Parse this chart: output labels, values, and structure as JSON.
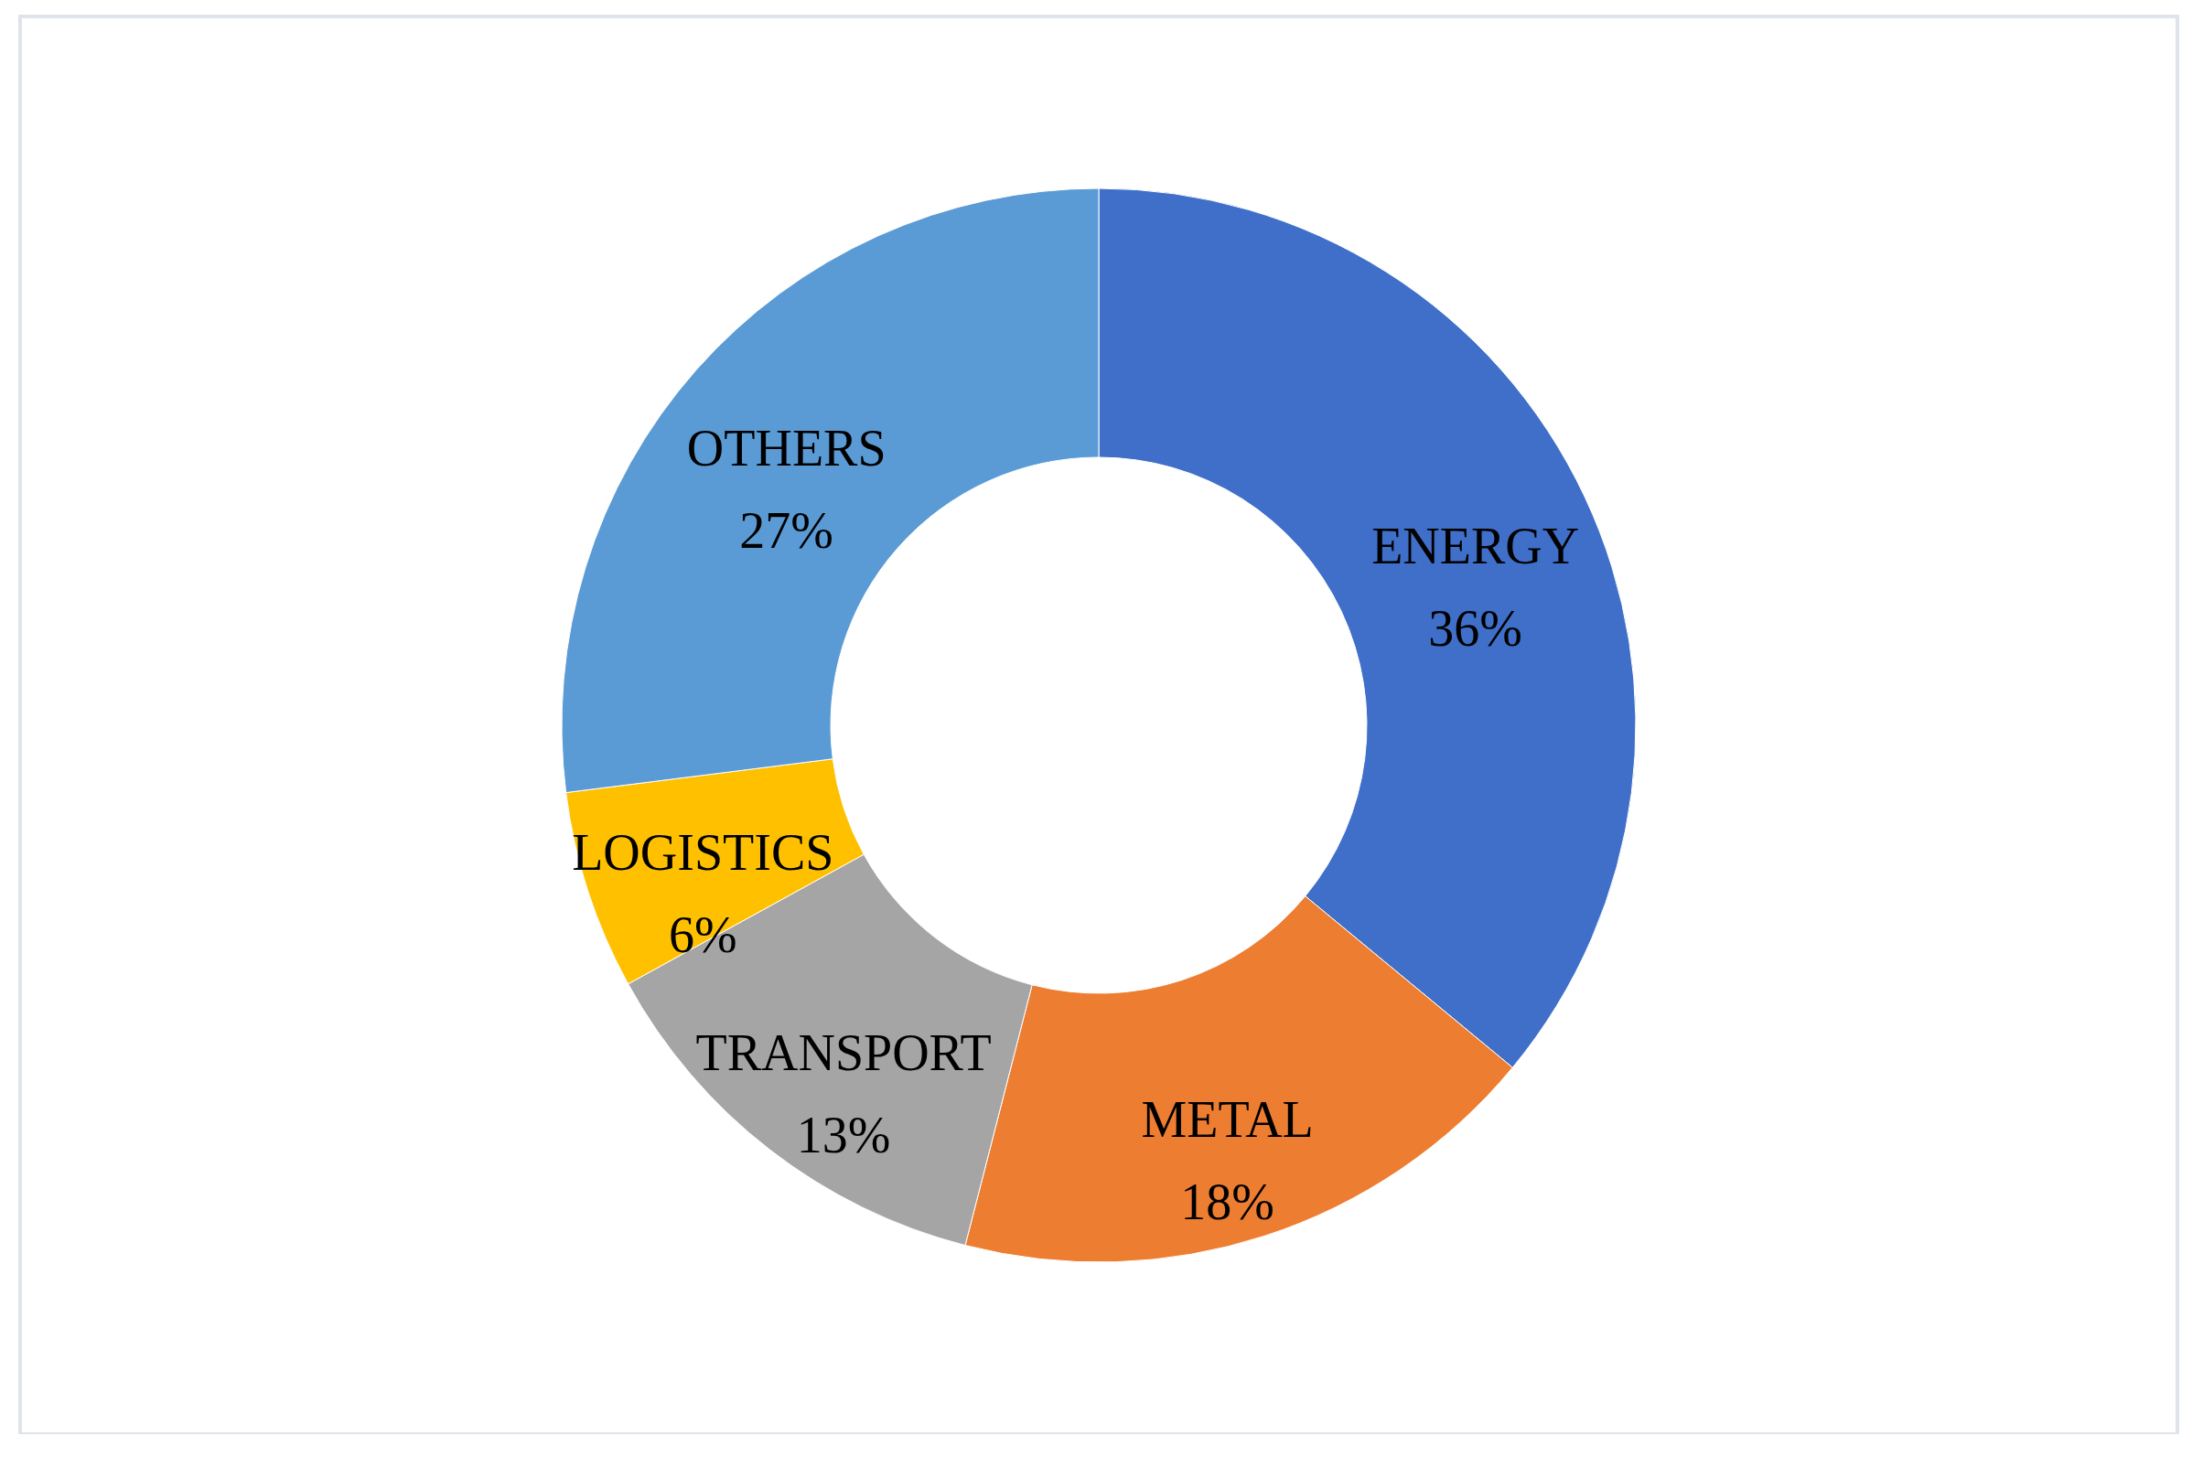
{
  "chart_data": {
    "type": "donut",
    "categories": [
      "ENERGY",
      "METAL",
      "TRANSPORT",
      "LOGISTICS",
      "OTHERS"
    ],
    "values": [
      36,
      18,
      13,
      6,
      27
    ],
    "colors": [
      "#3f6fc9",
      "#ed7d31",
      "#a5a5a5",
      "#ffc000",
      "#5b9bd5"
    ],
    "value_labels": [
      "36%",
      "18%",
      "13%",
      "6%",
      "27%"
    ]
  }
}
